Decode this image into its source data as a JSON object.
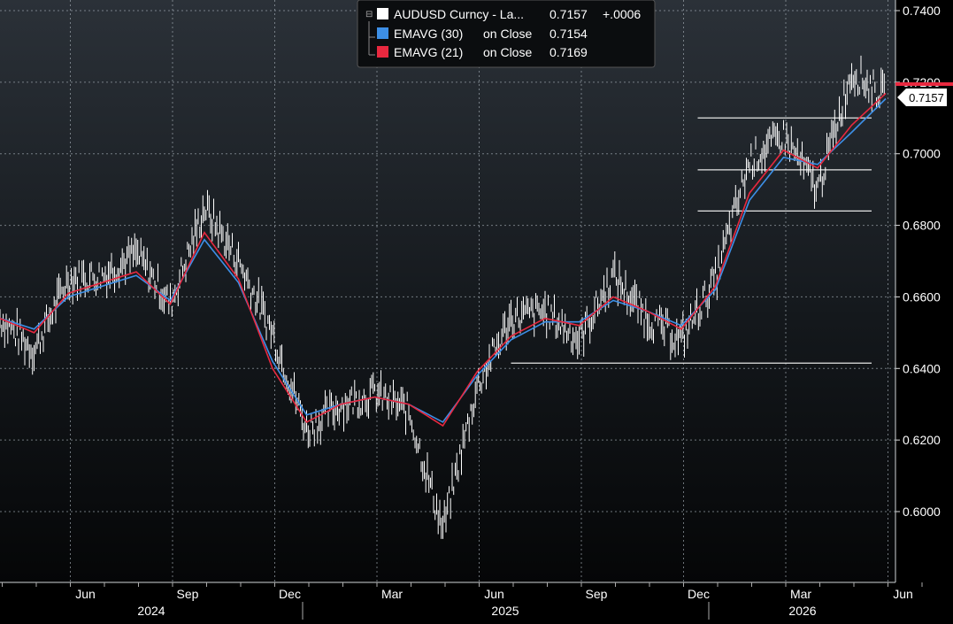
{
  "chart_data": {
    "type": "line",
    "title": "",
    "xlabel": "",
    "ylabel": "",
    "ylim": [
      0.59,
      0.741
    ],
    "yticks": [
      "0.6000",
      "0.6200",
      "0.6400",
      "0.6600",
      "0.6800",
      "0.7000",
      "0.7200",
      "0.7400"
    ],
    "x_month_labels": [
      "Jun",
      "Sep",
      "Dec",
      "Mar",
      "Jun",
      "Sep",
      "Dec",
      "Mar",
      "Jun"
    ],
    "x_year_labels": [
      "2024",
      "2025",
      "2026"
    ],
    "grid": true,
    "legend_position": "top-center",
    "last_price_label": "0.7157",
    "legend": [
      {
        "swatch_color": "#ffffff",
        "name": "AUDUSD Curncy - La...",
        "value": "0.7157",
        "change": "+.0006"
      },
      {
        "swatch_color": "#3d8fe6",
        "name": "EMAVG (30)",
        "suffix": "on Close",
        "value": "0.7154"
      },
      {
        "swatch_color": "#e8283f",
        "name": "EMAVG (21)",
        "suffix": "on Close",
        "value": "0.7169"
      }
    ],
    "series": [
      {
        "name": "AUDUSD Curncy",
        "color": "#ffffff",
        "x": [
          "2024-03",
          "2024-04",
          "2024-05",
          "2024-06",
          "2024-07",
          "2024-08",
          "2024-09",
          "2024-10",
          "2024-11",
          "2024-12",
          "2025-01",
          "2025-02",
          "2025-03",
          "2025-04",
          "2025-05",
          "2025-06",
          "2025-07",
          "2025-08",
          "2025-09",
          "2025-10",
          "2025-11",
          "2025-12",
          "2026-01",
          "2026-02",
          "2026-03",
          "2026-04",
          "2026-05"
        ],
        "y": [
          0.654,
          0.645,
          0.665,
          0.666,
          0.672,
          0.658,
          0.685,
          0.67,
          0.65,
          0.623,
          0.63,
          0.633,
          0.628,
          0.595,
          0.635,
          0.654,
          0.656,
          0.648,
          0.666,
          0.654,
          0.648,
          0.665,
          0.698,
          0.705,
          0.69,
          0.723,
          0.7157
        ]
      },
      {
        "name": "EMAVG (30)",
        "color": "#3d8fe6",
        "x": [
          "2024-03",
          "2024-04",
          "2024-05",
          "2024-06",
          "2024-07",
          "2024-08",
          "2024-09",
          "2024-10",
          "2024-11",
          "2024-12",
          "2025-01",
          "2025-02",
          "2025-03",
          "2025-04",
          "2025-05",
          "2025-06",
          "2025-07",
          "2025-08",
          "2025-09",
          "2025-10",
          "2025-11",
          "2025-12",
          "2026-01",
          "2026-02",
          "2026-03",
          "2026-04",
          "2026-05"
        ],
        "y": [
          0.654,
          0.651,
          0.66,
          0.663,
          0.666,
          0.659,
          0.676,
          0.664,
          0.642,
          0.627,
          0.63,
          0.632,
          0.63,
          0.625,
          0.638,
          0.648,
          0.653,
          0.653,
          0.659,
          0.656,
          0.652,
          0.662,
          0.687,
          0.699,
          0.697,
          0.706,
          0.7154
        ]
      },
      {
        "name": "EMAVG (21)",
        "color": "#e8283f",
        "x": [
          "2024-03",
          "2024-04",
          "2024-05",
          "2024-06",
          "2024-07",
          "2024-08",
          "2024-09",
          "2024-10",
          "2024-11",
          "2024-12",
          "2025-01",
          "2025-02",
          "2025-03",
          "2025-04",
          "2025-05",
          "2025-06",
          "2025-07",
          "2025-08",
          "2025-09",
          "2025-10",
          "2025-11",
          "2025-12",
          "2026-01",
          "2026-02",
          "2026-03",
          "2026-04",
          "2026-05"
        ],
        "y": [
          0.654,
          0.65,
          0.661,
          0.664,
          0.667,
          0.658,
          0.678,
          0.665,
          0.64,
          0.625,
          0.63,
          0.632,
          0.63,
          0.624,
          0.639,
          0.649,
          0.654,
          0.652,
          0.66,
          0.656,
          0.651,
          0.663,
          0.689,
          0.701,
          0.696,
          0.708,
          0.7169
        ]
      }
    ],
    "horizontal_lines": [
      {
        "y": 0.71,
        "from": "2025-12"
      },
      {
        "y": 0.6955,
        "from": "2025-12"
      },
      {
        "y": 0.684,
        "from": "2025-12"
      },
      {
        "y": 0.6415,
        "from": "2025-06"
      }
    ]
  }
}
